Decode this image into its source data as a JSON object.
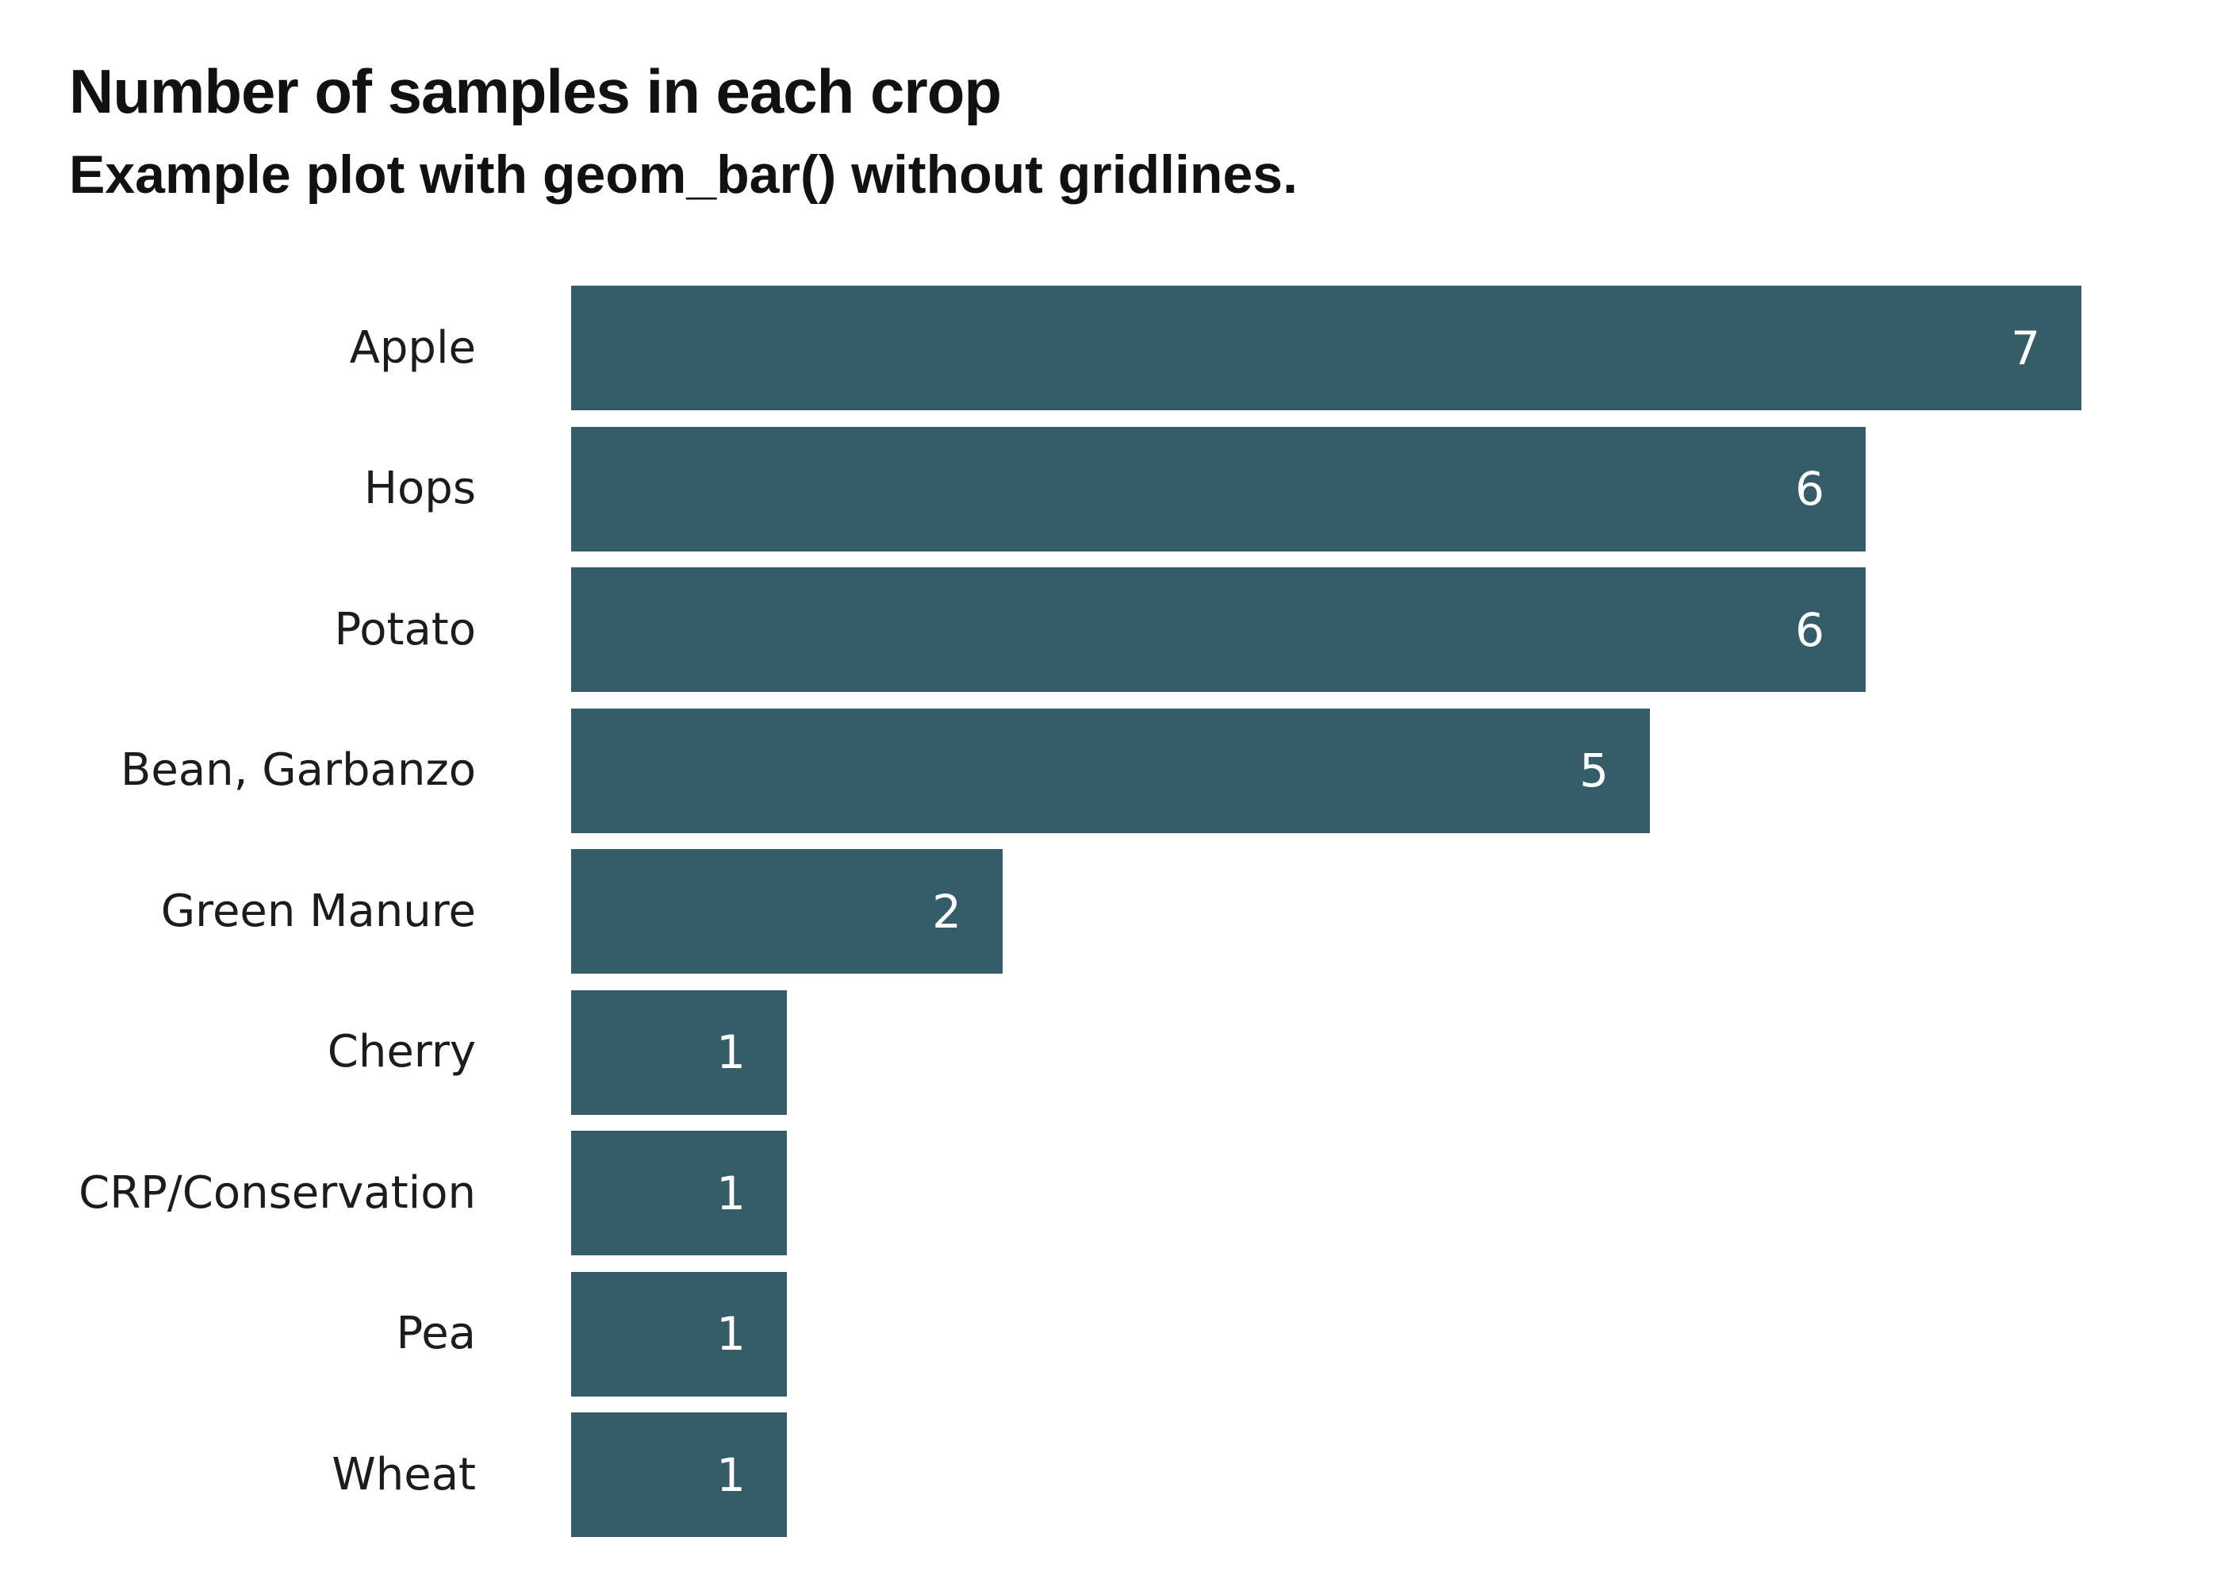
{
  "chart_data": {
    "type": "bar",
    "orientation": "horizontal",
    "title": "Number of samples in each crop",
    "subtitle": "Example plot with geom_bar() without gridlines.",
    "categories": [
      "Apple",
      "Hops",
      "Potato",
      "Bean, Garbanzo",
      "Green Manure",
      "Cherry",
      "CRP/Conservation",
      "Pea",
      "Wheat"
    ],
    "values": [
      7,
      6,
      6,
      5,
      2,
      1,
      1,
      1,
      1
    ],
    "rows": [
      {
        "label": "Apple",
        "value": "7"
      },
      {
        "label": "Hops",
        "value": "6"
      },
      {
        "label": "Potato",
        "value": "6"
      },
      {
        "label": "Bean, Garbanzo",
        "value": "5"
      },
      {
        "label": "Green Manure",
        "value": "2"
      },
      {
        "label": "Cherry",
        "value": "1"
      },
      {
        "label": "CRP/Conservation",
        "value": "1"
      },
      {
        "label": "Pea",
        "value": "1"
      },
      {
        "label": "Wheat",
        "value": "1"
      }
    ],
    "xlim": [
      0,
      7
    ],
    "grid": false,
    "axes_visible": false,
    "legend": "none",
    "value_labels_position": "inside-end",
    "colors": {
      "bar": "#345d68",
      "value_label": "#ffffff",
      "category_label": "#1c1c1c",
      "title": "#111111",
      "background": "#ffffff"
    }
  }
}
